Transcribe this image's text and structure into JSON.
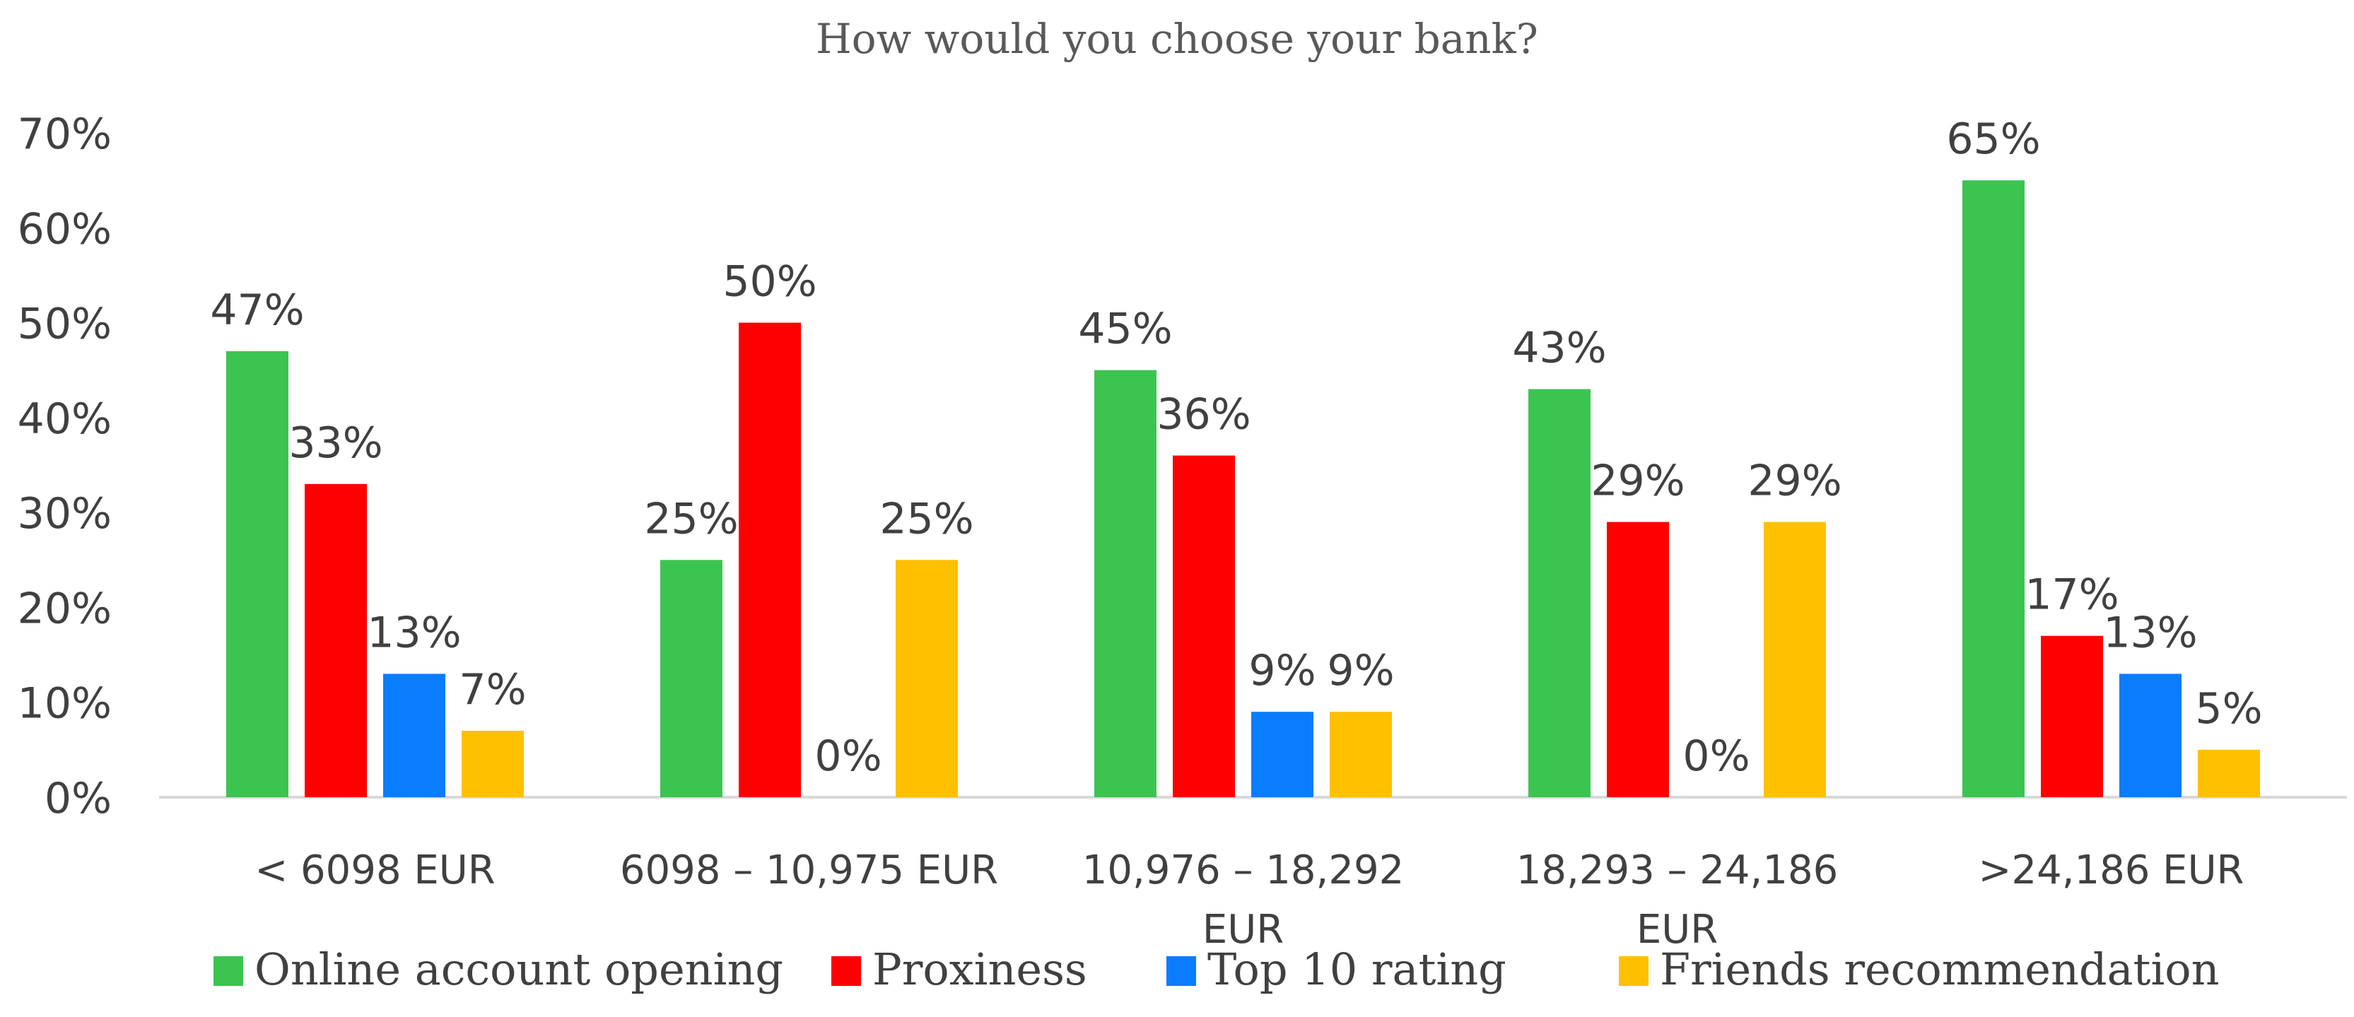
{
  "chart_data": {
    "type": "bar",
    "title": "How would you choose your bank?",
    "categories": [
      [
        "< 6098 EUR"
      ],
      [
        "6098 – 10,975 EUR"
      ],
      [
        "10,976 – 18,292",
        "EUR"
      ],
      [
        "18,293 – 24,186",
        "EUR"
      ],
      [
        ">24,186 EUR"
      ]
    ],
    "series": [
      {
        "name": "Online account opening",
        "color": "#3CC451",
        "values": [
          47,
          25,
          45,
          43,
          65
        ],
        "labels": [
          "47%",
          "25%",
          "45%",
          "43%",
          "65%"
        ]
      },
      {
        "name": "Proxiness",
        "color": "#FF0000",
        "values": [
          33,
          50,
          36,
          29,
          17
        ],
        "labels": [
          "33%",
          "50%",
          "36%",
          "29%",
          "17%"
        ]
      },
      {
        "name": "Top 10 rating",
        "color": "#0A7CFF",
        "values": [
          13,
          0,
          9,
          0,
          13
        ],
        "labels": [
          "13%",
          "0%",
          "9%",
          "0%",
          "13%"
        ]
      },
      {
        "name": "Friends recommendation",
        "color": "#FFC000",
        "values": [
          7,
          25,
          9,
          29,
          5
        ],
        "labels": [
          "7%",
          "25%",
          "9%",
          "29%",
          "5%"
        ]
      }
    ],
    "y_ticks": [
      "0%",
      "10%",
      "20%",
      "30%",
      "40%",
      "50%",
      "60%",
      "70%"
    ],
    "ylim": [
      0,
      70
    ],
    "xlabel": "",
    "ylabel": "",
    "grid": false,
    "legend_position": "bottom"
  }
}
